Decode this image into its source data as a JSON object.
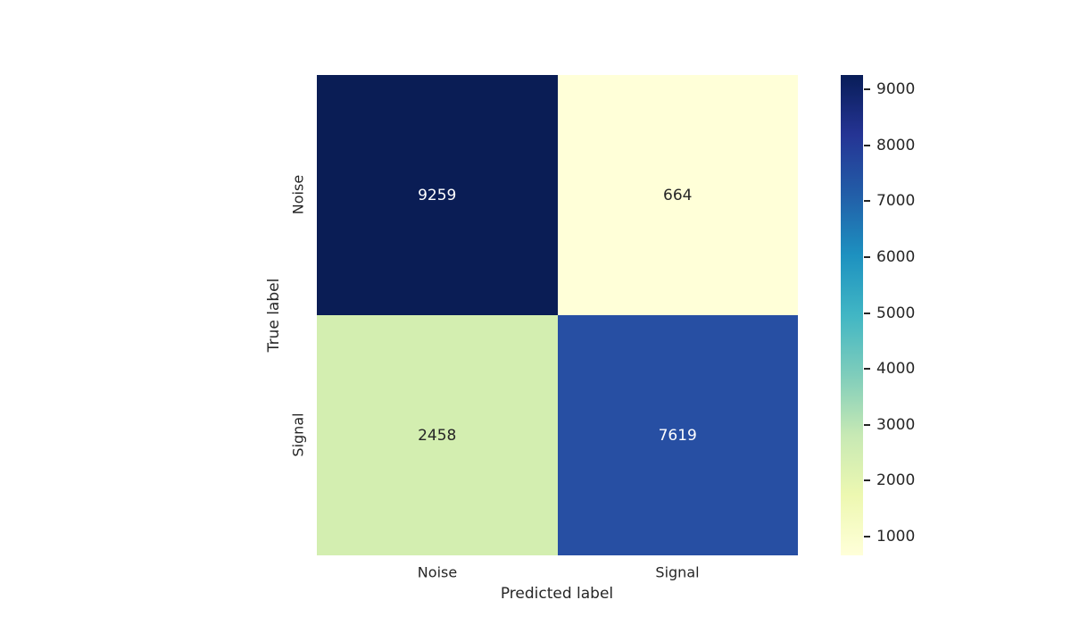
{
  "figure": {
    "background": "#ffffff",
    "text_color": "#262626"
  },
  "chart_data": {
    "type": "heatmap",
    "title": "",
    "xlabel": "Predicted label",
    "ylabel": "True label",
    "x_tick_labels": [
      "Noise",
      "Signal"
    ],
    "y_tick_labels": [
      "Noise",
      "Signal"
    ],
    "matrix": [
      [
        9259,
        664
      ],
      [
        2458,
        7619
      ]
    ],
    "vmin": 664,
    "vmax": 9259,
    "colormap": "YlGnBu (dark = high)",
    "colorbar_ticks": [
      9000,
      8000,
      7000,
      6000,
      5000,
      4000,
      3000,
      2000,
      1000
    ],
    "colorbar_position": "right",
    "grid": false,
    "annotations": true
  },
  "cell_styles": [
    {
      "bg": "#0a1d55",
      "fg": "#ffffff"
    },
    {
      "bg": "#ffffd8",
      "fg": "#262626"
    },
    {
      "bg": "#d3eeb0",
      "fg": "#262626"
    },
    {
      "bg": "#274fa3",
      "fg": "#ffffff"
    }
  ],
  "colorbar": {
    "stops_top_to_bottom": [
      "#081d58",
      "#253494",
      "#225ea8",
      "#1d91c0",
      "#41b6c4",
      "#7fcdbb",
      "#c7e9b4",
      "#edf8b1",
      "#ffffd9"
    ]
  }
}
